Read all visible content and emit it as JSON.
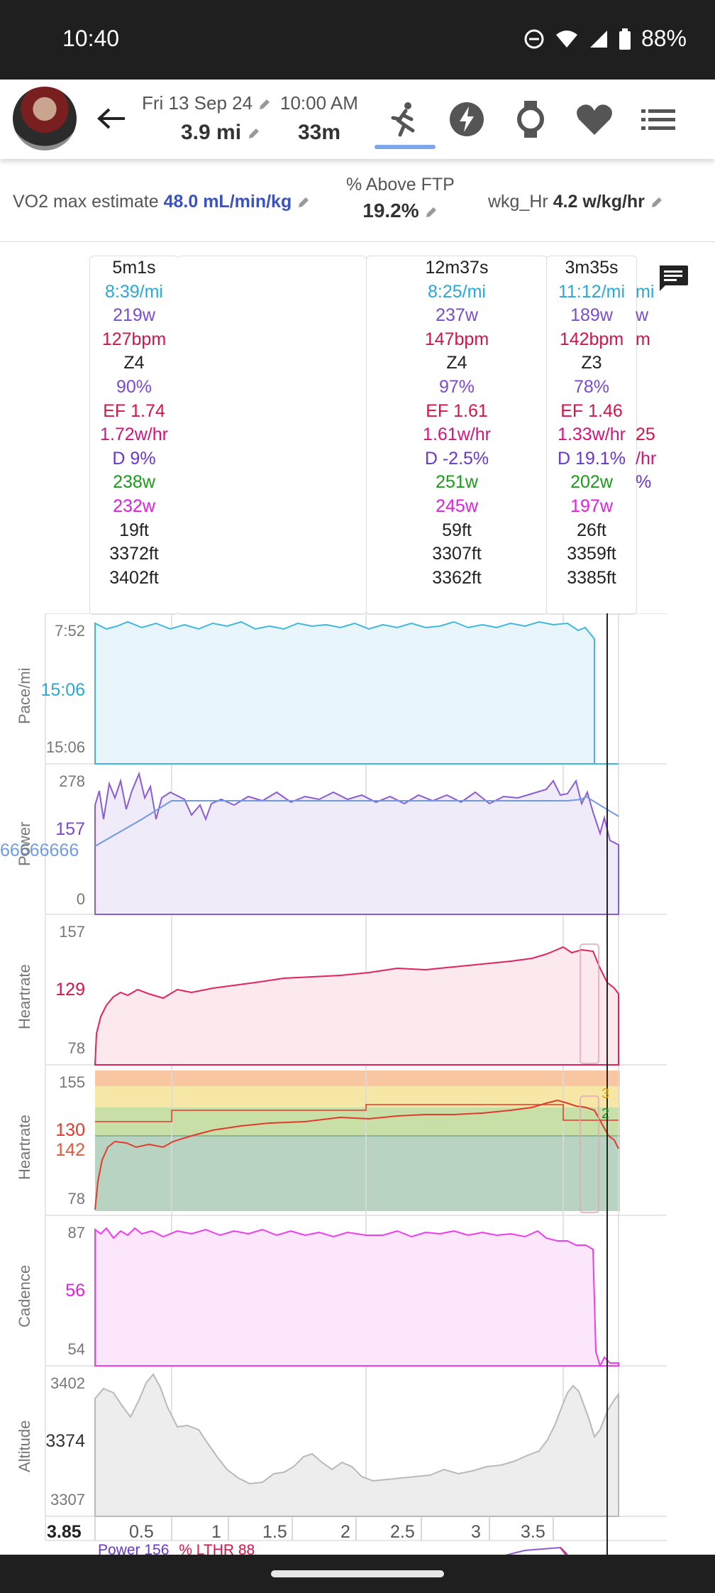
{
  "status_bar": {
    "time": "10:40",
    "battery": "88%",
    "icons": [
      "dnd-icon",
      "wifi-icon",
      "signal-icon",
      "battery-icon"
    ]
  },
  "header": {
    "date": "Fri 13 Sep 24",
    "start_time": "10:00 AM",
    "distance": "3.9 mi",
    "duration": "33m",
    "tabs": [
      "run-icon",
      "power-icon",
      "watch-icon",
      "heart-icon",
      "list-icon"
    ],
    "active_tab": "run-icon"
  },
  "metrics": {
    "vo2_label": "VO2 max estimate",
    "vo2_value": "48.0 mL/min/kg",
    "ftp_label": "% Above FTP",
    "ftp_value": "19.2%",
    "wkg_label": "wkg_Hr",
    "wkg_value": "4.2 w/kg/hr"
  },
  "intervals": [
    {
      "lines": [
        "5m1s",
        "8:39/mi",
        "219w",
        "127bpm",
        "Z4",
        "90%",
        "EF 1.74",
        "1.72w/hr",
        "D 9%",
        "238w",
        "232w",
        "19ft",
        "3372ft",
        "3402ft"
      ]
    },
    {
      "lines": [
        "12m37s",
        "8:25/mi",
        "237w",
        "147bpm",
        "Z4",
        "97%",
        "EF 1.61",
        "1.61w/hr",
        "D -2.5%",
        "251w",
        "245w",
        "59ft",
        "3307ft",
        "3362ft"
      ]
    },
    {
      "lines": [
        "3m35s",
        "11:12/mi",
        "189w",
        "142bpm",
        "Z3",
        "78%",
        "EF 1.46",
        "1.33w/hr",
        "D 19.1%",
        "202w",
        "197w",
        "26ft",
        "3359ft",
        "3385ft"
      ]
    }
  ],
  "partial_card_lines": [
    "mi",
    "w",
    "m",
    "",
    "",
    "",
    "25",
    "/hr",
    "%"
  ],
  "charts": {
    "pace": {
      "label": "Pace/mi",
      "top": "7:52",
      "mid": "15:06",
      "bottom": "15:06"
    },
    "power": {
      "label": "Power",
      "top": "278",
      "mid": "157",
      "mid2": "66666666",
      "bottom": "0"
    },
    "heartrate": {
      "label": "Heartrate",
      "top": "157",
      "mid": "129",
      "bottom": "78"
    },
    "heartrate_zones": {
      "label": "Heartrate",
      "top": "155",
      "mid": "130",
      "mid2": "142",
      "bottom": "78",
      "zone_markers": [
        "3",
        "2"
      ]
    },
    "cadence": {
      "label": "Cadence",
      "top": "87",
      "mid": "56",
      "bottom": "54"
    },
    "altitude": {
      "label": "Altitude",
      "top": "3402",
      "mid": "3374",
      "bottom": "3307"
    }
  },
  "x_axis": {
    "cursor_value": "3.85",
    "ticks": [
      "0.5",
      "1",
      "1.5",
      "2",
      "2.5",
      "3",
      "3.5"
    ]
  },
  "next_chart_legend": {
    "power": "Power 156",
    "lthr": "% LTHR 88"
  },
  "colors": {
    "pace": "#3fb7df",
    "power": "#8b5cd6",
    "power_avg": "#6f9ae8",
    "heartrate": "#e0245e",
    "cadence": "#f03cf0",
    "altitude": "#b9b9b9",
    "zone_green": "#9dc8a0",
    "zone_yellow": "#f7e7a6",
    "zone_orange": "#f9c6a2"
  }
}
